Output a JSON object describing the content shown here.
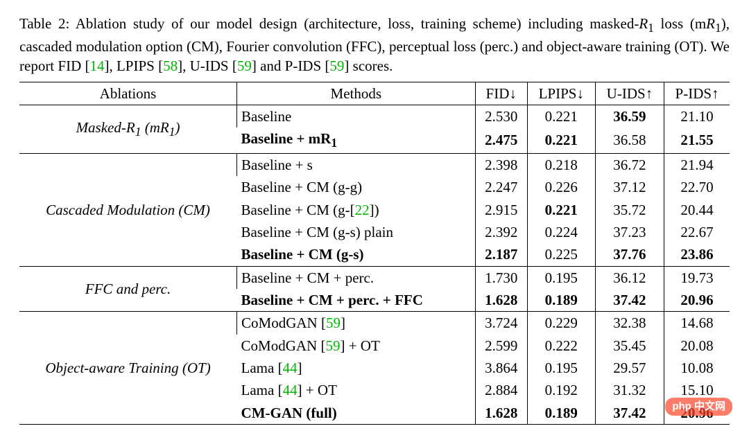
{
  "caption": {
    "prefix": "Table 2: Ablation study of our model design (architecture, loss, training scheme) including masked-",
    "r1": "R",
    "r1sub": "1",
    "mid1": " loss (m",
    "r1b": "R",
    "r1bsub": "1",
    "mid2": "), cascaded modulation option (CM), Fourier convolution (FFC), perceptual loss (perc.) and object-aware training (OT). We report FID [",
    "c14": "14",
    "mid3": "], LPIPS [",
    "c58": "58",
    "mid4": "], U-IDS [",
    "c59a": "59",
    "mid5": "] and P-IDS [",
    "c59b": "59",
    "mid6": "] scores."
  },
  "head": {
    "ablations": "Ablations",
    "methods": "Methods",
    "fid": "FID↓",
    "lpips": "LPIPS↓",
    "uids": "U-IDS↑",
    "pids": "P-IDS↑"
  },
  "groups": [
    {
      "label_html": "Masked-R<sub>1</sub> (mR<sub>1</sub>)",
      "rows": [
        {
          "method_html": "Baseline",
          "vals": [
            "2.530",
            "0.221",
            "36.59",
            "21.10"
          ],
          "bold": [
            0,
            0,
            1,
            0
          ],
          "bold_method": 0
        },
        {
          "method_html": "Baseline + mR<sub>1</sub>",
          "vals": [
            "2.475",
            "0.221",
            "36.58",
            "21.55"
          ],
          "bold": [
            1,
            1,
            0,
            1
          ],
          "bold_method": 1
        }
      ]
    },
    {
      "label_html": "Cascaded Modulation (CM)",
      "rows": [
        {
          "method_html": "Baseline + s",
          "vals": [
            "2.398",
            "0.218",
            "36.72",
            "21.94"
          ],
          "bold": [
            0,
            0,
            0,
            0
          ],
          "bold_method": 0
        },
        {
          "method_html": "Baseline + CM (g-g)",
          "vals": [
            "2.247",
            "0.226",
            "37.12",
            "22.70"
          ],
          "bold": [
            0,
            0,
            0,
            0
          ],
          "bold_method": 0
        },
        {
          "method_html": "Baseline + CM (g-[<span class='cite'>22</span>])",
          "vals": [
            "2.915",
            "0.221",
            "35.72",
            "20.44"
          ],
          "bold": [
            0,
            1,
            0,
            0
          ],
          "bold_method": 0
        },
        {
          "method_html": "Baseline + CM (g-s) plain",
          "vals": [
            "2.392",
            "0.224",
            "37.23",
            "22.67"
          ],
          "bold": [
            0,
            0,
            0,
            0
          ],
          "bold_method": 0
        },
        {
          "method_html": "Baseline + CM (g-s)",
          "vals": [
            "2.187",
            "0.225",
            "37.76",
            "23.86"
          ],
          "bold": [
            1,
            0,
            1,
            1
          ],
          "bold_method": 1
        }
      ]
    },
    {
      "label_html": "FFC and perc.",
      "rows": [
        {
          "method_html": "Baseline + CM + perc.",
          "vals": [
            "1.730",
            "0.195",
            "36.12",
            "19.73"
          ],
          "bold": [
            0,
            0,
            0,
            0
          ],
          "bold_method": 0
        },
        {
          "method_html": "Baseline + CM + perc. + FFC",
          "vals": [
            "1.628",
            "0.189",
            "37.42",
            "20.96"
          ],
          "bold": [
            1,
            1,
            1,
            1
          ],
          "bold_method": 1
        }
      ]
    },
    {
      "label_html": "Object-aware Training (OT)",
      "rows": [
        {
          "method_html": "CoModGAN [<span class='cite'>59</span>]",
          "vals": [
            "3.724",
            "0.229",
            "32.38",
            "14.68"
          ],
          "bold": [
            0,
            0,
            0,
            0
          ],
          "bold_method": 0
        },
        {
          "method_html": "CoModGAN [<span class='cite'>59</span>] + OT",
          "vals": [
            "2.599",
            "0.222",
            "35.45",
            "20.08"
          ],
          "bold": [
            0,
            0,
            0,
            0
          ],
          "bold_method": 0
        },
        {
          "method_html": "Lama [<span class='cite'>44</span>]",
          "vals": [
            "3.864",
            "0.195",
            "29.57",
            "10.08"
          ],
          "bold": [
            0,
            0,
            0,
            0
          ],
          "bold_method": 0
        },
        {
          "method_html": "Lama [<span class='cite'>44</span>] + OT",
          "vals": [
            "2.884",
            "0.192",
            "31.32",
            "15.10"
          ],
          "bold": [
            0,
            0,
            0,
            0
          ],
          "bold_method": 0
        },
        {
          "method_html": "CM-GAN (full)",
          "vals": [
            "1.628",
            "0.189",
            "37.42",
            "20.96"
          ],
          "bold": [
            1,
            1,
            1,
            1
          ],
          "bold_method": 1
        }
      ]
    }
  ],
  "watermark": "php 中文网"
}
